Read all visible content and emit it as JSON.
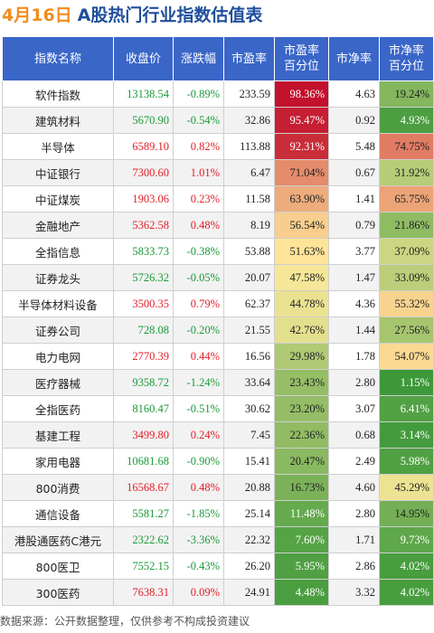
{
  "title": {
    "date": "4月16日",
    "main": "A股热门行业指数估值表"
  },
  "headers": {
    "name": "指数名称",
    "close": "收盘价",
    "change": "涨跌幅",
    "pe": "市盈率",
    "pe_pct": [
      "市盈率",
      "百分位"
    ],
    "pb": "市净率",
    "pb_pct": [
      "市净率",
      "百分位"
    ]
  },
  "rows": [
    {
      "name": "软件指数",
      "close": "13138.54",
      "change": "-0.89%",
      "pe": "233.59",
      "pe_pct": "98.36%",
      "pb": "4.63",
      "pb_pct": "19.24%"
    },
    {
      "name": "建筑材料",
      "close": "5670.90",
      "change": "-0.54%",
      "pe": "32.86",
      "pe_pct": "95.47%",
      "pb": "0.92",
      "pb_pct": "4.93%"
    },
    {
      "name": "半导体",
      "close": "6589.10",
      "change": "0.82%",
      "pe": "113.88",
      "pe_pct": "92.31%",
      "pb": "5.48",
      "pb_pct": "74.75%"
    },
    {
      "name": "中证银行",
      "close": "7300.60",
      "change": "1.01%",
      "pe": "6.47",
      "pe_pct": "71.04%",
      "pb": "0.67",
      "pb_pct": "31.92%"
    },
    {
      "name": "中证煤炭",
      "close": "1903.06",
      "change": "0.23%",
      "pe": "11.58",
      "pe_pct": "63.90%",
      "pb": "1.41",
      "pb_pct": "65.75%"
    },
    {
      "name": "金融地产",
      "close": "5362.58",
      "change": "0.48%",
      "pe": "8.19",
      "pe_pct": "56.54%",
      "pb": "0.79",
      "pb_pct": "21.86%"
    },
    {
      "name": "全指信息",
      "close": "5833.73",
      "change": "-0.38%",
      "pe": "53.88",
      "pe_pct": "51.63%",
      "pb": "3.77",
      "pb_pct": "37.09%"
    },
    {
      "name": "证券龙头",
      "close": "5726.32",
      "change": "-0.05%",
      "pe": "20.07",
      "pe_pct": "47.58%",
      "pb": "1.47",
      "pb_pct": "33.09%"
    },
    {
      "name": "半导体材料设备",
      "close": "3500.35",
      "change": "0.79%",
      "pe": "62.37",
      "pe_pct": "44.78%",
      "pb": "4.36",
      "pb_pct": "55.32%"
    },
    {
      "name": "证券公司",
      "close": "728.08",
      "change": "-0.20%",
      "pe": "21.55",
      "pe_pct": "42.76%",
      "pb": "1.44",
      "pb_pct": "27.56%"
    },
    {
      "name": "电力电网",
      "close": "2770.39",
      "change": "0.44%",
      "pe": "16.56",
      "pe_pct": "29.98%",
      "pb": "1.78",
      "pb_pct": "54.07%"
    },
    {
      "name": "医疗器械",
      "close": "9358.72",
      "change": "-1.24%",
      "pe": "33.64",
      "pe_pct": "23.43%",
      "pb": "2.80",
      "pb_pct": "1.15%"
    },
    {
      "name": "全指医药",
      "close": "8160.47",
      "change": "-0.51%",
      "pe": "30.62",
      "pe_pct": "23.20%",
      "pb": "3.07",
      "pb_pct": "6.41%"
    },
    {
      "name": "基建工程",
      "close": "3499.80",
      "change": "0.24%",
      "pe": "7.45",
      "pe_pct": "22.36%",
      "pb": "0.68",
      "pb_pct": "3.14%"
    },
    {
      "name": "家用电器",
      "close": "10681.68",
      "change": "-0.90%",
      "pe": "15.41",
      "pe_pct": "20.47%",
      "pb": "2.49",
      "pb_pct": "5.98%"
    },
    {
      "name": "800消费",
      "close": "16568.67",
      "change": "0.48%",
      "pe": "20.88",
      "pe_pct": "16.73%",
      "pb": "4.60",
      "pb_pct": "45.29%"
    },
    {
      "name": "通信设备",
      "close": "5581.27",
      "change": "-1.85%",
      "pe": "25.14",
      "pe_pct": "11.48%",
      "pb": "2.80",
      "pb_pct": "14.95%"
    },
    {
      "name": "港股通医药C港元",
      "close": "2322.62",
      "change": "-3.36%",
      "pe": "22.32",
      "pe_pct": "7.60%",
      "pb": "1.71",
      "pb_pct": "9.73%"
    },
    {
      "name": "800医卫",
      "close": "7552.15",
      "change": "-0.43%",
      "pe": "26.20",
      "pe_pct": "5.95%",
      "pb": "2.86",
      "pb_pct": "4.02%"
    },
    {
      "name": "300医药",
      "close": "7638.31",
      "change": "0.09%",
      "pe": "24.91",
      "pe_pct": "4.48%",
      "pb": "3.32",
      "pb_pct": "4.02%"
    }
  ],
  "colors": {
    "header_bg": "#3a66c8",
    "up": "#e0202a",
    "down": "#1b9a38",
    "title_date": "#f28c1e",
    "title_main": "#1f4e9c"
  },
  "footer": "数据来源：公开数据整理，仅供参考不构成投资建议"
}
